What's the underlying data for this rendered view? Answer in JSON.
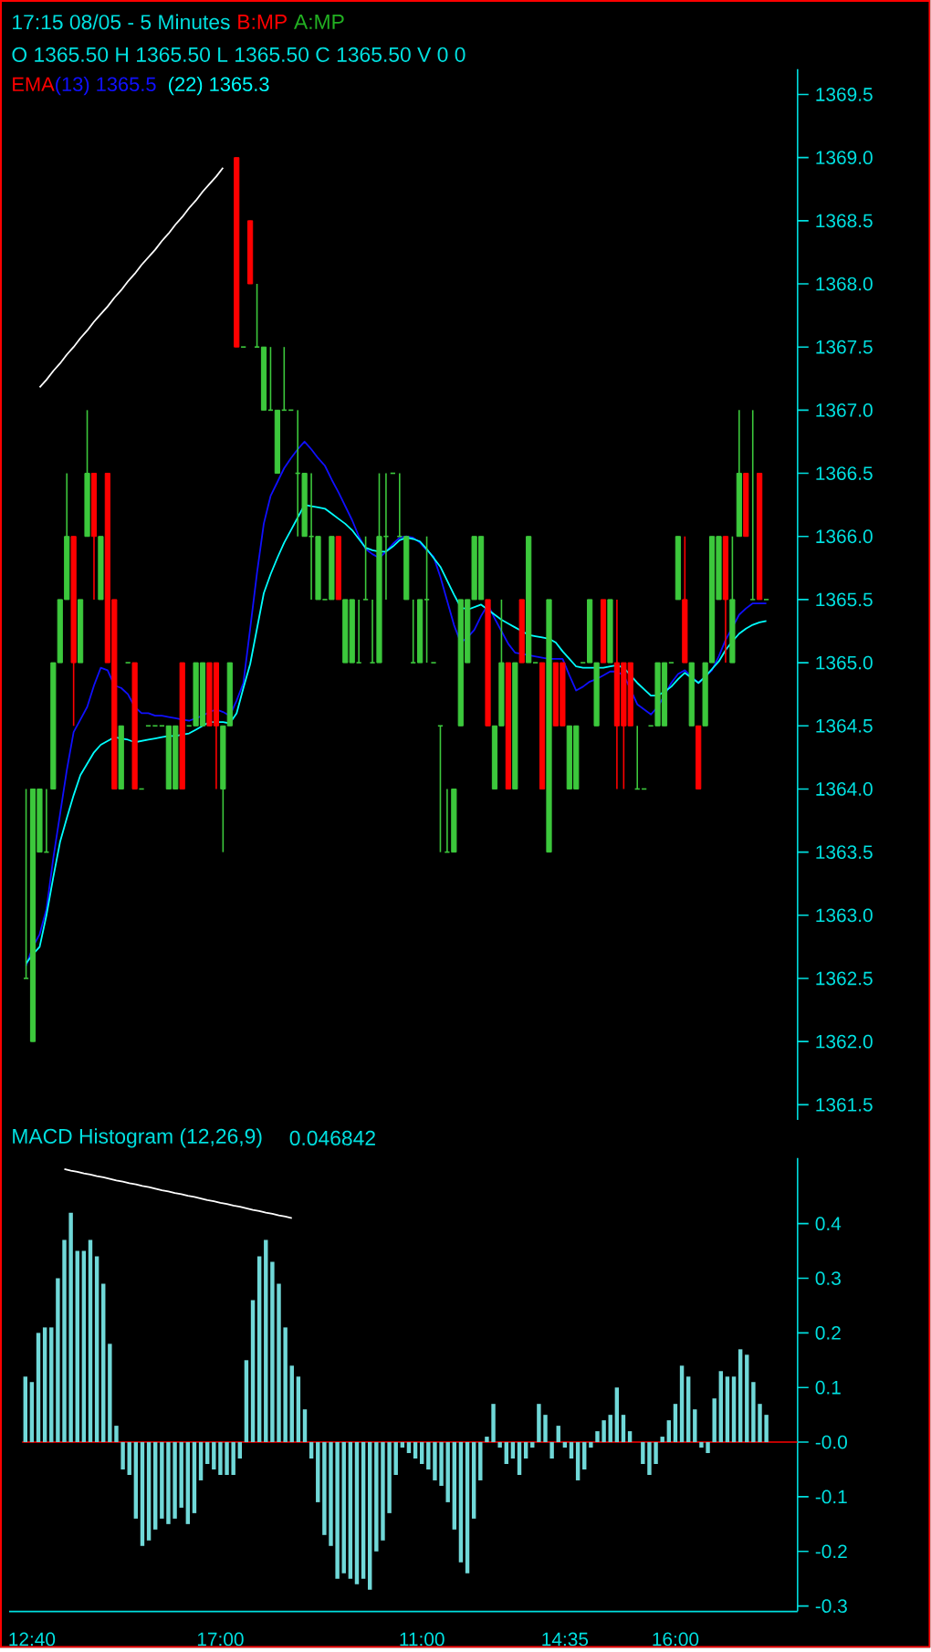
{
  "chart_data": [
    {
      "type": "candlestick",
      "title": "17:15 08/05   - 5 Minutes",
      "annotations": [
        "B:MP",
        "A:MP"
      ],
      "subtitle": "O 1365.50 H 1365.50 L 1365.50 C 1365.50 V 0  0",
      "legend_title": "EMA",
      "tick_labels": "y",
      "ylim": [
        1361.38,
        1369.7
      ],
      "yticks": [
        {
          "value": 1361.5,
          "label": "1361.5"
        },
        {
          "value": 1362,
          "label": "1362.0"
        },
        {
          "value": 1362.5,
          "label": "1362.5"
        },
        {
          "value": 1363,
          "label": "1363.0"
        },
        {
          "value": 1363.5,
          "label": "1363.5"
        },
        {
          "value": 1364,
          "label": "1364.0"
        },
        {
          "value": 1364.5,
          "label": "1364.5"
        },
        {
          "value": 1365,
          "label": "1365.0"
        },
        {
          "value": 1365.5,
          "label": "1365.5"
        },
        {
          "value": 1366,
          "label": "1366.0"
        },
        {
          "value": 1366.5,
          "label": "1366.5"
        },
        {
          "value": 1367,
          "label": "1367.0"
        },
        {
          "value": 1367.5,
          "label": "1367.5"
        },
        {
          "value": 1368,
          "label": "1368.0"
        },
        {
          "value": 1368.5,
          "label": "1368.5"
        },
        {
          "value": 1369,
          "label": "1369.0"
        },
        {
          "value": 1369.5,
          "label": "1369.5"
        }
      ],
      "categories": [
        null,
        null,
        null,
        null,
        null,
        null,
        null,
        null,
        null,
        null,
        null,
        null,
        null,
        null,
        null,
        null,
        null,
        null,
        null,
        null,
        null,
        null,
        null,
        null,
        null,
        null,
        null,
        null,
        null,
        null,
        null,
        null,
        null,
        null,
        null,
        null,
        null,
        null,
        null,
        null,
        null,
        null,
        null,
        null,
        null,
        null,
        null,
        null,
        null,
        null,
        null,
        null,
        null,
        null,
        null,
        null,
        null,
        null,
        null,
        null,
        null,
        null,
        null,
        null,
        null,
        null,
        null,
        null,
        null,
        null,
        null,
        null,
        null,
        null,
        null,
        null,
        null,
        null,
        null,
        null,
        null,
        null,
        null,
        null,
        null,
        null,
        null,
        null,
        null,
        null,
        null,
        null,
        null,
        null,
        null,
        null,
        null,
        null,
        null,
        null,
        null,
        null,
        null,
        null,
        null,
        null,
        null,
        null,
        null,
        null
      ],
      "ohlc": [
        [
          1362.5,
          1364.0,
          1362.5,
          1362.5
        ],
        [
          1362.0,
          1364.0,
          1362.0,
          1364.0
        ],
        [
          1363.5,
          1364.0,
          1363.5,
          1364.0
        ],
        [
          1363.5,
          1364.0,
          1363.5,
          1363.5
        ],
        [
          1364.0,
          1365.0,
          1364.0,
          1365.0
        ],
        [
          1365.0,
          1365.5,
          1365.0,
          1365.5
        ],
        [
          1365.5,
          1366.5,
          1365.5,
          1366.0
        ],
        [
          1366.0,
          1366.0,
          1364.5,
          1365.0
        ],
        [
          1365.0,
          1365.5,
          1365.0,
          1365.5
        ],
        [
          1366.0,
          1367.0,
          1366.0,
          1366.5
        ],
        [
          1366.5,
          1366.5,
          1365.5,
          1366.0
        ],
        [
          1365.5,
          1366.0,
          1365.5,
          1366.0
        ],
        [
          1366.5,
          1366.5,
          1365.0,
          1365.0
        ],
        [
          1365.5,
          1365.5,
          1364.0,
          1364.0
        ],
        [
          1364.0,
          1364.5,
          1364.0,
          1364.5
        ],
        [
          1365.0,
          1365.0,
          1365.0,
          1365.0
        ],
        [
          1365.0,
          1365.0,
          1364.0,
          1364.0
        ],
        [
          1364.0,
          1364.0,
          1364.0,
          1364.0
        ],
        [
          1364.5,
          1364.5,
          1364.5,
          1364.5
        ],
        [
          1364.5,
          1364.5,
          1364.5,
          1364.5
        ],
        [
          1364.5,
          1364.5,
          1364.5,
          1364.5
        ],
        [
          1364.0,
          1364.5,
          1364.0,
          1364.5
        ],
        [
          1364.0,
          1364.5,
          1364.0,
          1364.5
        ],
        [
          1365.0,
          1365.0,
          1364.0,
          1364.0
        ],
        [
          1364.5,
          1364.5,
          1364.5,
          1364.5
        ],
        [
          1364.5,
          1365.0,
          1364.5,
          1365.0
        ],
        [
          1364.5,
          1365.0,
          1364.5,
          1365.0
        ],
        [
          1365.0,
          1365.0,
          1364.5,
          1364.5
        ],
        [
          1365.0,
          1365.0,
          1364.0,
          1364.5
        ],
        [
          1364.0,
          1364.5,
          1363.5,
          1364.5
        ],
        [
          1364.5,
          1365.0,
          1364.5,
          1365.0
        ],
        [
          1369.0,
          1369.0,
          1367.5,
          1367.5
        ],
        [
          1367.5,
          1367.5,
          1367.5,
          1367.5
        ],
        [
          1368.5,
          1368.5,
          1368.0,
          1368.0
        ],
        [
          1367.5,
          1368.0,
          1367.5,
          1367.5
        ],
        [
          1367.0,
          1367.5,
          1367.0,
          1367.5
        ],
        [
          1367.0,
          1367.5,
          1367.0,
          1367.0
        ],
        [
          1366.5,
          1367.0,
          1366.5,
          1367.0
        ],
        [
          1367.0,
          1367.5,
          1367.0,
          1367.0
        ],
        [
          1367.0,
          1367.0,
          1367.0,
          1367.0
        ],
        [
          1366.5,
          1367.0,
          1366.0,
          1366.5
        ],
        [
          1366.0,
          1366.5,
          1366.0,
          1366.5
        ],
        [
          1366.0,
          1366.5,
          1365.5,
          1366.0
        ],
        [
          1365.5,
          1366.0,
          1365.5,
          1366.0
        ],
        [
          1365.5,
          1365.5,
          1365.5,
          1365.5
        ],
        [
          1365.5,
          1366.0,
          1365.5,
          1366.0
        ],
        [
          1366.0,
          1366.0,
          1365.5,
          1365.5
        ],
        [
          1365.0,
          1365.5,
          1365.0,
          1365.5
        ],
        [
          1365.0,
          1365.5,
          1365.0,
          1365.5
        ],
        [
          1365.0,
          1365.5,
          1365.0,
          1365.0
        ],
        [
          1365.5,
          1366.0,
          1365.5,
          1365.5
        ],
        [
          1365.0,
          1365.5,
          1365.0,
          1365.0
        ],
        [
          1365.0,
          1366.5,
          1365.0,
          1366.0
        ],
        [
          1366.0,
          1366.5,
          1365.5,
          1366.0
        ],
        [
          1366.5,
          1366.5,
          1366.5,
          1366.5
        ],
        [
          1366.0,
          1366.5,
          1366.0,
          1366.0
        ],
        [
          1365.5,
          1366.0,
          1365.5,
          1366.0
        ],
        [
          1365.0,
          1365.5,
          1365.0,
          1365.0
        ],
        [
          1365.0,
          1365.5,
          1365.0,
          1365.5
        ],
        [
          1365.5,
          1366.0,
          1365.0,
          1365.5
        ],
        [
          1365.0,
          1365.0,
          1365.0,
          1365.0
        ],
        [
          1364.5,
          1364.5,
          1363.5,
          1364.5
        ],
        [
          1363.5,
          1364.0,
          1363.5,
          1363.5
        ],
        [
          1363.5,
          1364.0,
          1363.5,
          1364.0
        ],
        [
          1364.5,
          1365.5,
          1364.5,
          1365.5
        ],
        [
          1365.0,
          1365.5,
          1365.0,
          1365.5
        ],
        [
          1365.5,
          1366.0,
          1365.5,
          1366.0
        ],
        [
          1365.5,
          1366.0,
          1365.5,
          1366.0
        ],
        [
          1365.5,
          1365.5,
          1364.5,
          1364.5
        ],
        [
          1364.0,
          1364.5,
          1364.0,
          1364.5
        ],
        [
          1364.5,
          1365.5,
          1364.5,
          1365.0
        ],
        [
          1365.0,
          1365.0,
          1364.0,
          1364.0
        ],
        [
          1364.0,
          1365.0,
          1364.0,
          1365.0
        ],
        [
          1365.5,
          1365.5,
          1365.0,
          1365.0
        ],
        [
          1365.0,
          1366.0,
          1365.0,
          1366.0
        ],
        [
          1365.0,
          1365.0,
          1365.0,
          1365.0
        ],
        [
          1365.0,
          1365.0,
          1364.0,
          1364.0
        ],
        [
          1363.5,
          1365.5,
          1363.5,
          1365.5
        ],
        [
          1365.0,
          1365.0,
          1364.5,
          1364.5
        ],
        [
          1365.0,
          1365.0,
          1364.5,
          1364.5
        ],
        [
          1364.0,
          1364.5,
          1364.0,
          1364.5
        ],
        [
          1364.0,
          1364.5,
          1364.0,
          1364.5
        ],
        [
          1365.0,
          1365.0,
          1365.0,
          1365.0
        ],
        [
          1365.0,
          1365.5,
          1365.0,
          1365.5
        ],
        [
          1364.5,
          1365.0,
          1364.5,
          1365.0
        ],
        [
          1365.5,
          1365.5,
          1365.0,
          1365.0
        ],
        [
          1365.0,
          1365.5,
          1365.0,
          1365.5
        ],
        [
          1365.0,
          1365.5,
          1364.0,
          1364.5
        ],
        [
          1365.0,
          1365.0,
          1364.0,
          1364.5
        ],
        [
          1365.0,
          1365.0,
          1364.5,
          1364.5
        ],
        [
          1364.0,
          1364.5,
          1364.0,
          1364.0
        ],
        [
          1364.0,
          1364.0,
          1364.0,
          1364.0
        ],
        [
          1364.5,
          1364.5,
          1364.5,
          1364.5
        ],
        [
          1364.5,
          1365.0,
          1364.5,
          1365.0
        ],
        [
          1364.5,
          1365.0,
          1364.5,
          1365.0
        ],
        [
          1365.0,
          1365.0,
          1365.0,
          1365.0
        ],
        [
          1365.5,
          1366.0,
          1365.5,
          1366.0
        ],
        [
          1365.5,
          1366.0,
          1365.0,
          1365.0
        ],
        [
          1364.5,
          1365.0,
          1364.5,
          1365.0
        ],
        [
          1364.5,
          1364.5,
          1364.0,
          1364.0
        ],
        [
          1364.5,
          1365.0,
          1364.5,
          1365.0
        ],
        [
          1365.0,
          1366.0,
          1365.0,
          1366.0
        ],
        [
          1365.5,
          1366.0,
          1365.5,
          1366.0
        ],
        [
          1366.0,
          1366.0,
          1365.0,
          1365.5
        ],
        [
          1365.0,
          1366.0,
          1365.0,
          1365.5
        ],
        [
          1366.0,
          1367.0,
          1366.0,
          1366.5
        ],
        [
          1366.5,
          1366.5,
          1366.0,
          1366.0
        ],
        [
          1365.5,
          1367.0,
          1365.5,
          1365.5
        ],
        [
          1366.5,
          1366.5,
          1365.5,
          1365.5
        ],
        [
          1365.5,
          1365.5,
          1365.5,
          1365.5
        ]
      ],
      "colors": [
        "#3cc83c",
        "#3cc83c",
        "#3cc83c",
        "#3cc83c",
        "#3cc83c",
        "#3cc83c",
        "#3cc83c",
        "#ff0000",
        "#3cc83c",
        "#3cc83c",
        "#ff0000",
        "#3cc83c",
        "#ff0000",
        "#ff0000",
        "#3cc83c",
        "#3cc83c",
        "#ff0000",
        "#3cc83c",
        "#3cc83c",
        "#3cc83c",
        "#3cc83c",
        "#3cc83c",
        "#3cc83c",
        "#ff0000",
        "#3cc83c",
        "#3cc83c",
        "#3cc83c",
        "#ff0000",
        "#ff0000",
        "#3cc83c",
        "#3cc83c",
        "#ff0000",
        "#3cc83c",
        "#ff0000",
        "#3cc83c",
        "#3cc83c",
        "#3cc83c",
        "#3cc83c",
        "#3cc83c",
        "#3cc83c",
        "#3cc83c",
        "#3cc83c",
        "#3cc83c",
        "#3cc83c",
        "#3cc83c",
        "#3cc83c",
        "#ff0000",
        "#3cc83c",
        "#3cc83c",
        "#3cc83c",
        "#3cc83c",
        "#3cc83c",
        "#3cc83c",
        "#3cc83c",
        "#3cc83c",
        "#3cc83c",
        "#3cc83c",
        "#3cc83c",
        "#3cc83c",
        "#3cc83c",
        "#3cc83c",
        "#3cc83c",
        "#3cc83c",
        "#3cc83c",
        "#3cc83c",
        "#3cc83c",
        "#3cc83c",
        "#3cc83c",
        "#ff0000",
        "#3cc83c",
        "#3cc83c",
        "#ff0000",
        "#3cc83c",
        "#ff0000",
        "#3cc83c",
        "#3cc83c",
        "#ff0000",
        "#3cc83c",
        "#ff0000",
        "#ff0000",
        "#3cc83c",
        "#3cc83c",
        "#3cc83c",
        "#3cc83c",
        "#3cc83c",
        "#ff0000",
        "#3cc83c",
        "#ff0000",
        "#ff0000",
        "#ff0000",
        "#3cc83c",
        "#3cc83c",
        "#3cc83c",
        "#3cc83c",
        "#3cc83c",
        "#3cc83c",
        "#3cc83c",
        "#ff0000",
        "#3cc83c",
        "#ff0000",
        "#3cc83c",
        "#3cc83c",
        "#3cc83c",
        "#ff0000",
        "#3cc83c",
        "#3cc83c",
        "#ff0000",
        "#3cc83c",
        "#ff0000",
        "#3cc83c"
      ],
      "series": [
        {
          "name": "(13) 1365.5",
          "type": "line",
          "color": "#1010ff",
          "values": [
            1362.6,
            1362.75,
            1362.85,
            1363.05,
            1363.45,
            1363.8,
            1364.15,
            1364.45,
            1364.55,
            1364.65,
            1364.82,
            1364.96,
            1364.94,
            1364.82,
            1364.8,
            1364.75,
            1364.65,
            1364.6,
            1364.6,
            1364.58,
            1364.58,
            1364.57,
            1364.56,
            1364.55,
            1364.54,
            1364.56,
            1364.58,
            1364.61,
            1364.63,
            1364.61,
            1364.58,
            1364.7,
            1364.84,
            1365.27,
            1365.71,
            1366.1,
            1366.32,
            1366.43,
            1366.54,
            1366.62,
            1366.69,
            1366.75,
            1366.69,
            1366.62,
            1366.56,
            1366.45,
            1366.35,
            1366.24,
            1366.13,
            1366.0,
            1365.9,
            1365.86,
            1365.83,
            1365.88,
            1365.94,
            1365.99,
            1366.0,
            1365.99,
            1365.95,
            1365.89,
            1365.84,
            1365.68,
            1365.49,
            1365.3,
            1365.16,
            1365.2,
            1365.26,
            1365.37,
            1365.46,
            1365.35,
            1365.25,
            1365.15,
            1365.08,
            1365.07,
            1365.06,
            1365.05,
            1365.04,
            1365.03,
            1365.03,
            1365.03,
            1364.9,
            1364.78,
            1364.81,
            1364.85,
            1364.87,
            1364.9,
            1364.93,
            1364.93,
            1364.9,
            1364.79,
            1364.67,
            1364.63,
            1364.59,
            1364.65,
            1364.74,
            1364.84,
            1364.91,
            1364.94,
            1364.89,
            1364.84,
            1364.89,
            1364.94,
            1365.05,
            1365.18,
            1365.28,
            1365.38,
            1365.43,
            1365.47,
            1365.47,
            1365.47
          ]
        },
        {
          "name": "(22) 1365.3",
          "type": "line",
          "color": "#00ffff",
          "values": [
            1362.62,
            1362.69,
            1362.75,
            1363.0,
            1363.3,
            1363.58,
            1363.77,
            1363.95,
            1364.11,
            1364.2,
            1364.29,
            1364.35,
            1364.38,
            1364.41,
            1364.4,
            1364.39,
            1364.37,
            1364.38,
            1364.39,
            1364.4,
            1364.41,
            1364.42,
            1364.42,
            1364.43,
            1364.44,
            1364.47,
            1364.5,
            1364.53,
            1364.53,
            1364.53,
            1364.52,
            1364.6,
            1364.8,
            1364.99,
            1365.27,
            1365.55,
            1365.7,
            1365.83,
            1365.95,
            1366.05,
            1366.15,
            1366.25,
            1366.24,
            1366.23,
            1366.22,
            1366.18,
            1366.14,
            1366.1,
            1366.05,
            1365.98,
            1365.91,
            1365.89,
            1365.88,
            1365.88,
            1365.92,
            1365.97,
            1365.99,
            1365.98,
            1365.96,
            1365.9,
            1365.83,
            1365.76,
            1365.65,
            1365.54,
            1365.44,
            1365.42,
            1365.44,
            1365.46,
            1365.42,
            1365.38,
            1365.34,
            1365.31,
            1365.28,
            1365.25,
            1365.22,
            1365.21,
            1365.2,
            1365.19,
            1365.16,
            1365.09,
            1365.03,
            1364.97,
            1364.96,
            1364.96,
            1364.96,
            1364.96,
            1364.97,
            1364.98,
            1364.96,
            1364.9,
            1364.84,
            1364.79,
            1364.74,
            1364.74,
            1364.77,
            1364.81,
            1364.87,
            1364.92,
            1364.88,
            1364.84,
            1364.89,
            1364.95,
            1365.01,
            1365.1,
            1365.17,
            1365.23,
            1365.27,
            1365.3,
            1365.32,
            1365.33
          ]
        },
        {
          "type": "line",
          "color": "#ffffff",
          "values": [
            null,
            null,
            1367.18,
            1367.24,
            1367.31,
            1367.37,
            1367.44,
            1367.5,
            1367.57,
            1367.63,
            1367.7,
            1367.76,
            1367.82,
            1367.89,
            1367.95,
            1368.02,
            1368.08,
            1368.15,
            1368.21,
            1368.27,
            1368.34,
            1368.4,
            1368.47,
            1368.53,
            1368.6,
            1368.66,
            1368.73,
            1368.79,
            1368.85,
            1368.92,
            null,
            null,
            null,
            null,
            null,
            null,
            null,
            null,
            null,
            null,
            null,
            null,
            null,
            null,
            null,
            null,
            null,
            null,
            null,
            null,
            null,
            null,
            null,
            null,
            null,
            null,
            null,
            null,
            null,
            null,
            null,
            null,
            null,
            null,
            null,
            null,
            null,
            null,
            null,
            null,
            null,
            null,
            null,
            null,
            null,
            null,
            null,
            null,
            null,
            null,
            null,
            null,
            null,
            null,
            null,
            null,
            null,
            null,
            null,
            null,
            null,
            null,
            null,
            null,
            null,
            null,
            null,
            null,
            null,
            null,
            null,
            null,
            null,
            null,
            null,
            null,
            null,
            null,
            null,
            null
          ]
        }
      ]
    },
    {
      "type": "bar",
      "title": "MACD Histogram (12,26,9)",
      "subtitle": "0.046842",
      "ylim": [
        -0.31,
        0.52
      ],
      "categories": [
        null,
        "12:40",
        null,
        null,
        null,
        null,
        null,
        null,
        null,
        null,
        null,
        null,
        null,
        null,
        null,
        null,
        null,
        null,
        null,
        null,
        null,
        null,
        null,
        null,
        null,
        null,
        null,
        null,
        null,
        null,
        "17:00",
        null,
        null,
        null,
        null,
        null,
        null,
        null,
        null,
        null,
        null,
        null,
        null,
        null,
        null,
        null,
        null,
        null,
        null,
        null,
        null,
        null,
        null,
        null,
        null,
        null,
        null,
        null,
        null,
        null,
        null,
        "11:00",
        null,
        null,
        null,
        null,
        null,
        null,
        null,
        null,
        null,
        null,
        null,
        null,
        null,
        null,
        null,
        null,
        null,
        null,
        null,
        null,
        null,
        "14:35",
        null,
        null,
        null,
        null,
        null,
        null,
        null,
        null,
        null,
        null,
        null,
        null,
        null,
        null,
        null,
        null,
        "16:00",
        null,
        null,
        null,
        null,
        null,
        null,
        null,
        null,
        null,
        null,
        null,
        null,
        null,
        null
      ],
      "yticks": [
        0.4,
        0.3,
        0.2,
        0.1,
        {
          "value": 0,
          "label": "-0.0"
        },
        -0.1,
        -0.2,
        -0.3
      ],
      "ref_lines": [
        {
          "axis": "y",
          "value": 0,
          "color": "#ff0000"
        }
      ],
      "series": [
        {
          "type": "bar",
          "color": "#70d8d8",
          "values": [
            0.12,
            0.11,
            0.2,
            0.21,
            0.21,
            0.3,
            0.37,
            0.42,
            0.35,
            0.35,
            0.37,
            0.34,
            0.29,
            0.18,
            0.03,
            -0.05,
            -0.06,
            -0.14,
            -0.19,
            -0.18,
            -0.16,
            -0.14,
            -0.15,
            -0.14,
            -0.12,
            -0.15,
            -0.13,
            -0.07,
            -0.04,
            -0.05,
            -0.06,
            -0.06,
            -0.06,
            -0.03,
            0.15,
            0.26,
            0.34,
            0.37,
            0.33,
            0.29,
            0.21,
            0.14,
            0.12,
            0.06,
            -0.03,
            -0.11,
            -0.17,
            -0.19,
            -0.25,
            -0.24,
            -0.25,
            -0.26,
            -0.25,
            -0.27,
            -0.2,
            -0.18,
            -0.13,
            -0.06,
            -0.01,
            -0.02,
            -0.03,
            -0.04,
            -0.05,
            -0.07,
            -0.08,
            -0.11,
            -0.16,
            -0.22,
            -0.24,
            -0.14,
            -0.07,
            0.01,
            0.07,
            -0.01,
            -0.04,
            -0.03,
            -0.06,
            -0.03,
            -0.01,
            0.07,
            0.05,
            -0.03,
            0.03,
            -0.01,
            -0.03,
            -0.07,
            -0.05,
            -0.01,
            0.02,
            0.04,
            0.05,
            0.1,
            0.05,
            0.02,
            0.0,
            -0.04,
            -0.06,
            -0.04,
            0.01,
            0.04,
            0.07,
            0.14,
            0.12,
            0.06,
            -0.01,
            -0.02,
            0.08,
            0.13,
            0.12,
            0.12,
            0.17,
            0.16,
            0.11,
            0.07,
            0.05
          ]
        },
        {
          "type": "line",
          "color": "#ffffff",
          "values": [
            null,
            null,
            null,
            null,
            null,
            null,
            0.5,
            0.497,
            0.495,
            0.492,
            0.49,
            0.487,
            0.485,
            0.482,
            0.479,
            0.477,
            0.474,
            0.472,
            0.469,
            0.467,
            0.464,
            0.461,
            0.459,
            0.456,
            0.454,
            0.451,
            0.449,
            0.446,
            0.443,
            0.441,
            0.438,
            0.436,
            0.433,
            0.431,
            0.428,
            0.425,
            0.423,
            0.42,
            0.418,
            0.415,
            0.413,
            0.41,
            null,
            null,
            null,
            null,
            null,
            null,
            null,
            null,
            null,
            null,
            null,
            null,
            null,
            null,
            null,
            null,
            null,
            null,
            null,
            null,
            null,
            null,
            null,
            null,
            null,
            null,
            null,
            null,
            null,
            null,
            null,
            null,
            null,
            null,
            null,
            null,
            null,
            null,
            null,
            null,
            null,
            null,
            null,
            null,
            null,
            null,
            null,
            null,
            null,
            null,
            null,
            null,
            null,
            null,
            null,
            null,
            null,
            null,
            null,
            null,
            null,
            null,
            null,
            null,
            null,
            null,
            null,
            null,
            null,
            null,
            null,
            null,
            null
          ]
        }
      ]
    }
  ]
}
